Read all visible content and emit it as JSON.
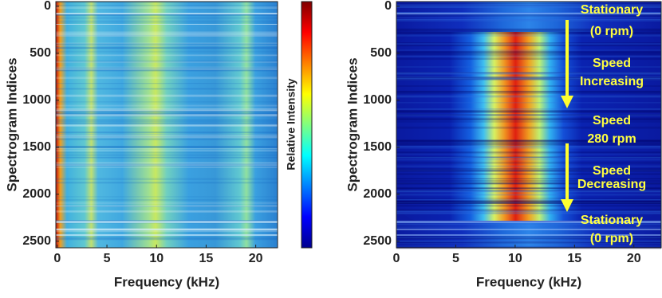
{
  "chart_data": [
    {
      "type": "heatmap",
      "colormap": "jet",
      "xlabel": "Frequency (kHz)",
      "ylabel": "Spectrogram Indices",
      "xlim": [
        -0.15,
        22.2
      ],
      "xticks": [
        0,
        5,
        10,
        15,
        20
      ],
      "ylim": [
        -50,
        2570
      ],
      "yticks": [
        0,
        500,
        1000,
        1500,
        2000,
        2500
      ],
      "y_reversed": true,
      "colorbar_label": "Relative Intensity"
    },
    {
      "type": "heatmap",
      "colormap": "jet",
      "xlabel": "Frequency (kHz)",
      "ylabel": "Spectrogram Indices",
      "xlim": [
        0,
        22.3
      ],
      "xticks": [
        0,
        5,
        10,
        15,
        20
      ],
      "ylim": [
        -50,
        2570
      ],
      "yticks": [
        0,
        500,
        1000,
        1500,
        2000,
        2500
      ],
      "y_reversed": true,
      "annotations": [
        [
          "Stationary",
          "(0 rpm)"
        ],
        [
          "Speed",
          "Increasing"
        ],
        [
          "Speed",
          "280 rpm"
        ],
        [
          "Speed",
          "Decreasing"
        ],
        [
          "Stationary",
          "(0 rpm)"
        ]
      ]
    }
  ]
}
